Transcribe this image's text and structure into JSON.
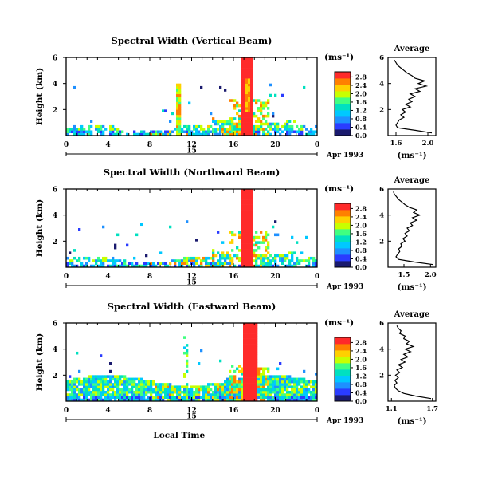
{
  "chart_data": [
    {
      "type": "heatmap",
      "title": "Spectral Width (Vertical Beam)",
      "ylabel": "Height (km)",
      "y_ticks": [
        "2",
        "4",
        "6"
      ],
      "x_ticks": [
        "0",
        "4",
        "8",
        "12",
        "16",
        "20",
        "0"
      ],
      "xlim": [
        0,
        24
      ],
      "ylim": [
        0,
        6
      ],
      "day_label": "15",
      "date_label": "Apr 1993",
      "colorbar": {
        "unit": "(ms⁻¹)",
        "ticks": [
          "0.0",
          "0.4",
          "0.8",
          "1.2",
          "1.6",
          "2.0",
          "2.4",
          "2.8"
        ]
      },
      "description_free_regions": "Mostly low spectral width values confined below ~1 km; tall red column near 17–18 h local time spanning full height.",
      "average_profile": {
        "title": "Average",
        "xlabel": "(ms⁻¹)",
        "x_ticks": [
          "1.6",
          "2.0"
        ],
        "xlim": [
          1.5,
          2.1
        ],
        "y_ticks": [
          "2",
          "4",
          "6"
        ],
        "heights": [
          0.2,
          0.4,
          0.6,
          0.8,
          1.0,
          1.2,
          1.4,
          1.6,
          1.8,
          2.0,
          2.2,
          2.4,
          2.6,
          2.8,
          3.0,
          3.2,
          3.4,
          3.6,
          3.8,
          4.0,
          4.2,
          4.4,
          4.6,
          4.8,
          5.0,
          5.2,
          5.4,
          5.6,
          5.8
        ],
        "values": [
          2.05,
          1.85,
          1.62,
          1.6,
          1.62,
          1.64,
          1.7,
          1.66,
          1.72,
          1.68,
          1.78,
          1.72,
          1.8,
          1.76,
          1.84,
          1.78,
          1.9,
          1.84,
          1.98,
          1.88,
          1.96,
          1.84,
          1.8,
          1.74,
          1.7,
          1.66,
          1.62,
          1.6,
          1.58
        ]
      }
    },
    {
      "type": "heatmap",
      "title": "Spectral Width (Northward Beam)",
      "ylabel": "Height (km)",
      "y_ticks": [
        "2",
        "4",
        "6"
      ],
      "x_ticks": [
        "0",
        "4",
        "8",
        "12",
        "16",
        "20",
        "0"
      ],
      "xlim": [
        0,
        24
      ],
      "ylim": [
        0,
        6
      ],
      "day_label": "15",
      "date_label": "Apr 1993",
      "colorbar": {
        "unit": "(ms⁻¹)",
        "ticks": [
          "0.0",
          "0.4",
          "0.8",
          "1.2",
          "1.6",
          "2.0",
          "2.4",
          "2.8"
        ]
      },
      "average_profile": {
        "title": "Average",
        "xlabel": "(ms⁻¹)",
        "x_ticks": [
          "1.5",
          "2.0"
        ],
        "xlim": [
          1.2,
          2.1
        ],
        "y_ticks": [
          "2",
          "4",
          "6"
        ],
        "heights": [
          0.2,
          0.4,
          0.6,
          0.8,
          1.0,
          1.2,
          1.4,
          1.6,
          1.8,
          2.0,
          2.2,
          2.4,
          2.6,
          2.8,
          3.0,
          3.2,
          3.4,
          3.6,
          3.8,
          4.0,
          4.2,
          4.4,
          4.6,
          4.8,
          5.0,
          5.2,
          5.4,
          5.6,
          5.8
        ],
        "values": [
          2.05,
          1.7,
          1.4,
          1.35,
          1.38,
          1.42,
          1.4,
          1.46,
          1.44,
          1.52,
          1.48,
          1.56,
          1.52,
          1.6,
          1.56,
          1.66,
          1.62,
          1.74,
          1.66,
          1.8,
          1.68,
          1.74,
          1.6,
          1.52,
          1.46,
          1.4,
          1.36,
          1.32,
          1.3
        ]
      }
    },
    {
      "type": "heatmap",
      "title": "Spectral Width (Eastward Beam)",
      "ylabel": "Height (km)",
      "xlabel": "Local Time",
      "y_ticks": [
        "2",
        "4",
        "6"
      ],
      "x_ticks": [
        "0",
        "4",
        "8",
        "12",
        "16",
        "20",
        "0"
      ],
      "xlim": [
        0,
        24
      ],
      "ylim": [
        0,
        6
      ],
      "day_label": "15",
      "date_label": "Apr 1993",
      "colorbar": {
        "unit": "(ms⁻¹)",
        "ticks": [
          "0.0",
          "0.4",
          "0.8",
          "1.2",
          "1.6",
          "2.0",
          "2.4",
          "2.8"
        ]
      },
      "average_profile": {
        "title": "Average",
        "xlabel": "(ms⁻¹)",
        "x_ticks": [
          "1.1",
          "1.7"
        ],
        "xlim": [
          1.05,
          1.75
        ],
        "y_ticks": [
          "2",
          "4",
          "6"
        ],
        "heights": [
          0.2,
          0.4,
          0.6,
          0.8,
          1.0,
          1.2,
          1.4,
          1.6,
          1.8,
          2.0,
          2.2,
          2.4,
          2.6,
          2.8,
          3.0,
          3.2,
          3.4,
          3.6,
          3.8,
          4.0,
          4.2,
          4.4,
          4.6,
          4.8,
          5.0,
          5.2,
          5.4,
          5.6,
          5.8
        ],
        "values": [
          1.68,
          1.45,
          1.28,
          1.2,
          1.16,
          1.14,
          1.18,
          1.15,
          1.2,
          1.16,
          1.22,
          1.18,
          1.26,
          1.2,
          1.3,
          1.24,
          1.34,
          1.28,
          1.38,
          1.3,
          1.42,
          1.32,
          1.36,
          1.28,
          1.3,
          1.22,
          1.24,
          1.2,
          1.18
        ]
      }
    }
  ],
  "palette": [
    "#1a1a6e",
    "#2a3cff",
    "#1e90ff",
    "#00c8ff",
    "#00e0c0",
    "#40ff80",
    "#c8ff00",
    "#ffd000",
    "#ff8000",
    "#ff2a2a"
  ]
}
